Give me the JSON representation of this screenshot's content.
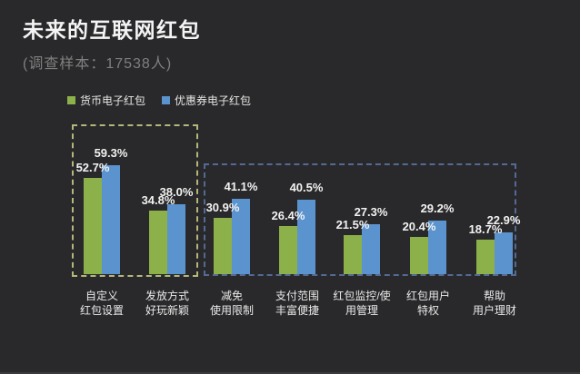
{
  "header": {
    "title": "未来的互联网红包",
    "subtitle": "(调查样本：17538人)"
  },
  "legend": [
    {
      "label": "货币电子红包",
      "color": "#8cb04a"
    },
    {
      "label": "优惠券电子红包",
      "color": "#5b93ce"
    }
  ],
  "colors": {
    "background": "#29292b",
    "bar_green": "#8cb04a",
    "bar_blue": "#5b93ce",
    "highlight_dash_green": "#b4b878",
    "highlight_dash_blue": "#546a94",
    "title_text": "#f4f4f4",
    "subtitle_text": "#7f7f7f",
    "value_label_text": "#f2f2f2"
  },
  "chart_data": {
    "type": "bar",
    "categories": [
      "自定义\n红包设置",
      "发放方式\n好玩新颖",
      "减免\n使用限制",
      "支付范围\n丰富便捷",
      "红包监控/使\n用管理",
      "红包用户\n特权",
      "帮助\n用户理财"
    ],
    "series": [
      {
        "name": "货币电子红包",
        "color": "#8cb04a",
        "values": [
          52.7,
          34.8,
          30.9,
          26.4,
          21.5,
          20.4,
          18.7
        ],
        "labels": [
          "52.7%",
          "34.8%",
          "30.9%",
          "26.4%",
          "21.5%",
          "20.4%",
          "18.7%"
        ]
      },
      {
        "name": "优惠券电子红包",
        "color": "#5b93ce",
        "values": [
          59.3,
          38.0,
          41.1,
          40.5,
          27.3,
          29.2,
          22.9
        ],
        "labels": [
          "59.3%",
          "38.0%",
          "41.1%",
          "40.5%",
          "27.3%",
          "29.2%",
          "22.9%"
        ]
      }
    ],
    "value_suffix": "%",
    "ylim": [
      0,
      65
    ],
    "grid": false,
    "legend_position": "top",
    "annotations": {
      "highlight_boxes": [
        {
          "name": "monetary-leaders",
          "covers_categories": [
            0,
            1
          ]
        },
        {
          "name": "coupon-rest",
          "covers_categories": [
            2,
            3,
            4,
            5,
            6
          ]
        }
      ]
    }
  }
}
